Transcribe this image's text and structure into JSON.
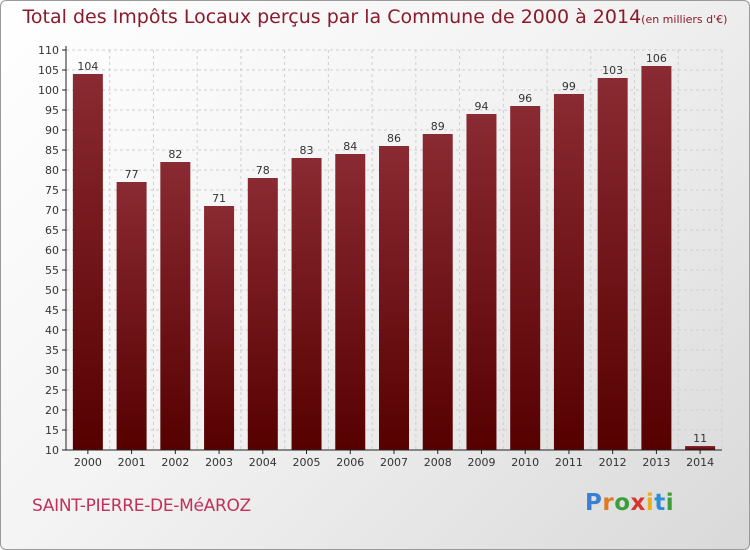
{
  "header": {
    "title": "Total des Impôts Locaux perçus par la Commune de 2000 à 2014",
    "unit": "(en milliers d'€)"
  },
  "footer": {
    "commune": "SAINT-PIERRE-DE-MéAROZ",
    "logo_letters": [
      "P",
      "r",
      "o",
      "x",
      "i",
      "t",
      "i"
    ],
    "logo_colors": [
      "#3a7fd0",
      "#e07a1f",
      "#3a9f3a",
      "#d8342a",
      "#e6b020",
      "#2f8ed8",
      "#3a9f3a"
    ]
  },
  "colors": {
    "bar_top": "#8a2a32",
    "bar_bottom": "#560000",
    "title": "#8b1a2a",
    "grid": "#cfcfcf",
    "axis": "#222222"
  },
  "chart_data": {
    "type": "bar",
    "title": "Total des Impôts Locaux perçus par la Commune de 2000 à 2014",
    "ylabel": "en milliers d'€",
    "xlabel": "",
    "categories": [
      "2000",
      "2001",
      "2002",
      "2003",
      "2004",
      "2005",
      "2006",
      "2007",
      "2008",
      "2009",
      "2010",
      "2011",
      "2012",
      "2013",
      "2014"
    ],
    "values": [
      104,
      77,
      82,
      71,
      78,
      83,
      84,
      86,
      89,
      94,
      96,
      99,
      103,
      106,
      11
    ],
    "ylim": [
      10,
      110
    ],
    "yticks": [
      10,
      15,
      20,
      25,
      30,
      35,
      40,
      45,
      50,
      55,
      60,
      65,
      70,
      75,
      80,
      85,
      90,
      95,
      100,
      105,
      110
    ],
    "grid": true
  }
}
